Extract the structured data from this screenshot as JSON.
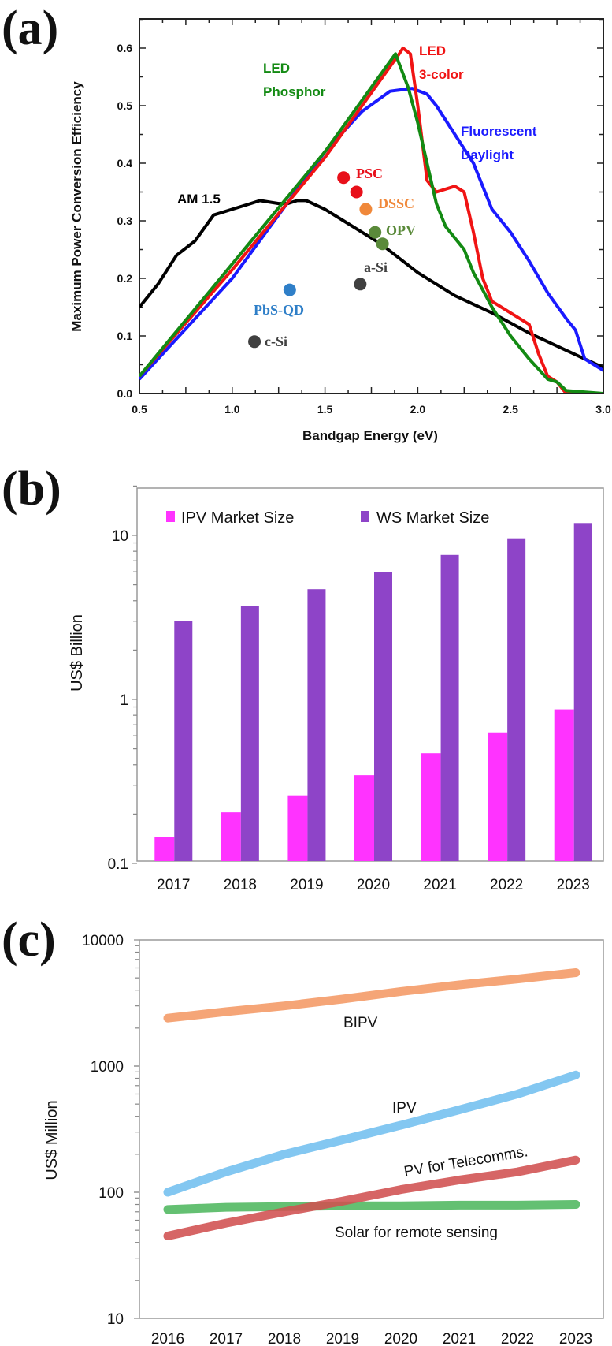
{
  "panels": {
    "a": "(a)",
    "b": "(b)",
    "c": "(c)"
  },
  "chart_data": [
    {
      "type": "line",
      "xlabel": "Bandgap Energy (eV)",
      "ylabel": "Maximum Power Conversion Efficiency",
      "xlim": [
        0.5,
        3.0
      ],
      "ylim": [
        0,
        0.65
      ],
      "xticks": [
        "0.5",
        "1.0",
        "1.5",
        "2.0",
        "2.5",
        "3.0"
      ],
      "yticks": [
        "0.0",
        "0.1",
        "0.2",
        "0.3",
        "0.4",
        "0.5",
        "0.6"
      ],
      "grid": false,
      "series": [
        {
          "name": "AM 1.5",
          "label_lines": [
            "AM 1.5"
          ],
          "color": "#000000",
          "x": [
            0.5,
            0.6,
            0.7,
            0.8,
            0.9,
            1.0,
            1.1,
            1.15,
            1.25,
            1.3,
            1.35,
            1.4,
            1.5,
            1.6,
            1.7,
            1.8,
            1.9,
            2.0,
            2.2,
            2.4,
            2.6,
            2.8,
            3.0
          ],
          "y": [
            0.15,
            0.19,
            0.24,
            0.265,
            0.31,
            0.32,
            0.33,
            0.335,
            0.33,
            0.33,
            0.335,
            0.335,
            0.32,
            0.3,
            0.28,
            0.26,
            0.235,
            0.21,
            0.17,
            0.14,
            0.105,
            0.075,
            0.045
          ]
        },
        {
          "name": "LED Phosphor",
          "label_lines": [
            "LED",
            "Phosphor"
          ],
          "color": "#138a13",
          "x": [
            0.5,
            1.0,
            1.5,
            1.88,
            1.95,
            2.0,
            2.05,
            2.1,
            2.15,
            2.2,
            2.25,
            2.3,
            2.4,
            2.5,
            2.6,
            2.7,
            2.75,
            2.8,
            3.0
          ],
          "y": [
            0.03,
            0.225,
            0.42,
            0.59,
            0.53,
            0.47,
            0.4,
            0.33,
            0.29,
            0.27,
            0.25,
            0.21,
            0.15,
            0.1,
            0.06,
            0.025,
            0.02,
            0.005,
            0.0
          ]
        },
        {
          "name": "LED 3-color",
          "label_lines": [
            "LED",
            "3-color"
          ],
          "color": "#f01414",
          "x": [
            0.5,
            1.0,
            1.5,
            1.9,
            1.92,
            1.96,
            2.0,
            2.05,
            2.1,
            2.2,
            2.25,
            2.3,
            2.35,
            2.4,
            2.5,
            2.55,
            2.6,
            2.65,
            2.7,
            2.75,
            2.8,
            3.0
          ],
          "y": [
            0.03,
            0.215,
            0.41,
            0.59,
            0.6,
            0.59,
            0.5,
            0.37,
            0.35,
            0.36,
            0.35,
            0.28,
            0.2,
            0.16,
            0.14,
            0.13,
            0.12,
            0.07,
            0.03,
            0.02,
            0.0,
            0.0
          ]
        },
        {
          "name": "Fluorescent Daylight",
          "label_lines": [
            "Fluorescent",
            "Daylight"
          ],
          "color": "#1a1aff",
          "x": [
            0.5,
            1.0,
            1.5,
            1.7,
            1.85,
            1.97,
            2.05,
            2.1,
            2.2,
            2.3,
            2.4,
            2.5,
            2.6,
            2.7,
            2.8,
            2.85,
            2.9,
            2.95,
            3.0
          ],
          "y": [
            0.025,
            0.2,
            0.42,
            0.49,
            0.525,
            0.53,
            0.52,
            0.5,
            0.45,
            0.4,
            0.32,
            0.28,
            0.23,
            0.175,
            0.13,
            0.11,
            0.06,
            0.05,
            0.04
          ]
        }
      ],
      "points": [
        {
          "label": "PSC",
          "color": "#e8101a",
          "x": [
            1.6,
            1.67
          ],
          "y": [
            0.375,
            0.35
          ]
        },
        {
          "label": "DSSC",
          "color": "#f0883a",
          "x": [
            1.72
          ],
          "y": [
            0.32
          ]
        },
        {
          "label": "OPV",
          "color": "#5a8a3a",
          "x": [
            1.77,
            1.81
          ],
          "y": [
            0.28,
            0.26
          ]
        },
        {
          "label": "a-Si",
          "color": "#404040",
          "x": [
            1.69
          ],
          "y": [
            0.19
          ]
        },
        {
          "label": "PbS-QD",
          "color": "#2f7fc8",
          "x": [
            1.31
          ],
          "y": [
            0.18
          ]
        },
        {
          "label": "c-Si",
          "color": "#404040",
          "x": [
            1.12
          ],
          "y": [
            0.09
          ]
        }
      ]
    },
    {
      "type": "bar",
      "ylabel": "US$ Billion",
      "yscale": "log",
      "ylim": [
        0.1,
        20
      ],
      "yticks": [
        "0.1",
        "1",
        "10"
      ],
      "legend": "top",
      "categories": [
        "2017",
        "2018",
        "2019",
        "2020",
        "2021",
        "2022",
        "2023"
      ],
      "series": [
        {
          "name": "IPV Market Size",
          "color": "#ff33ff",
          "values": [
            0.145,
            0.205,
            0.26,
            0.345,
            0.47,
            0.63,
            0.87
          ]
        },
        {
          "name": "WS Market Size",
          "color": "#8e44c8",
          "values": [
            3.0,
            3.7,
            4.7,
            6.0,
            7.6,
            9.6,
            11.9
          ]
        }
      ]
    },
    {
      "type": "line",
      "ylabel": "US$ Million",
      "yscale": "log",
      "ylim": [
        10,
        10000
      ],
      "yticks": [
        "10",
        "100",
        "1000",
        "10000"
      ],
      "categories": [
        "2016",
        "2017",
        "2018",
        "2019",
        "2020",
        "2021",
        "2022",
        "2023"
      ],
      "series": [
        {
          "name": "BIPV",
          "color": "#f4a070",
          "values": [
            2400,
            2700,
            3000,
            3400,
            3900,
            4400,
            4900,
            5500
          ]
        },
        {
          "name": "IPV",
          "color": "#7cc4f0",
          "values": [
            100,
            145,
            200,
            260,
            340,
            450,
            600,
            850
          ]
        },
        {
          "name": "PV for Telecomms.",
          "color": "#d05050",
          "values": [
            45,
            57,
            70,
            85,
            105,
            125,
            145,
            180
          ]
        },
        {
          "name": "Solar for remote sensing",
          "color": "#5cbd6a",
          "values": [
            73,
            76,
            77,
            78,
            78,
            79,
            79,
            80
          ]
        }
      ]
    }
  ]
}
